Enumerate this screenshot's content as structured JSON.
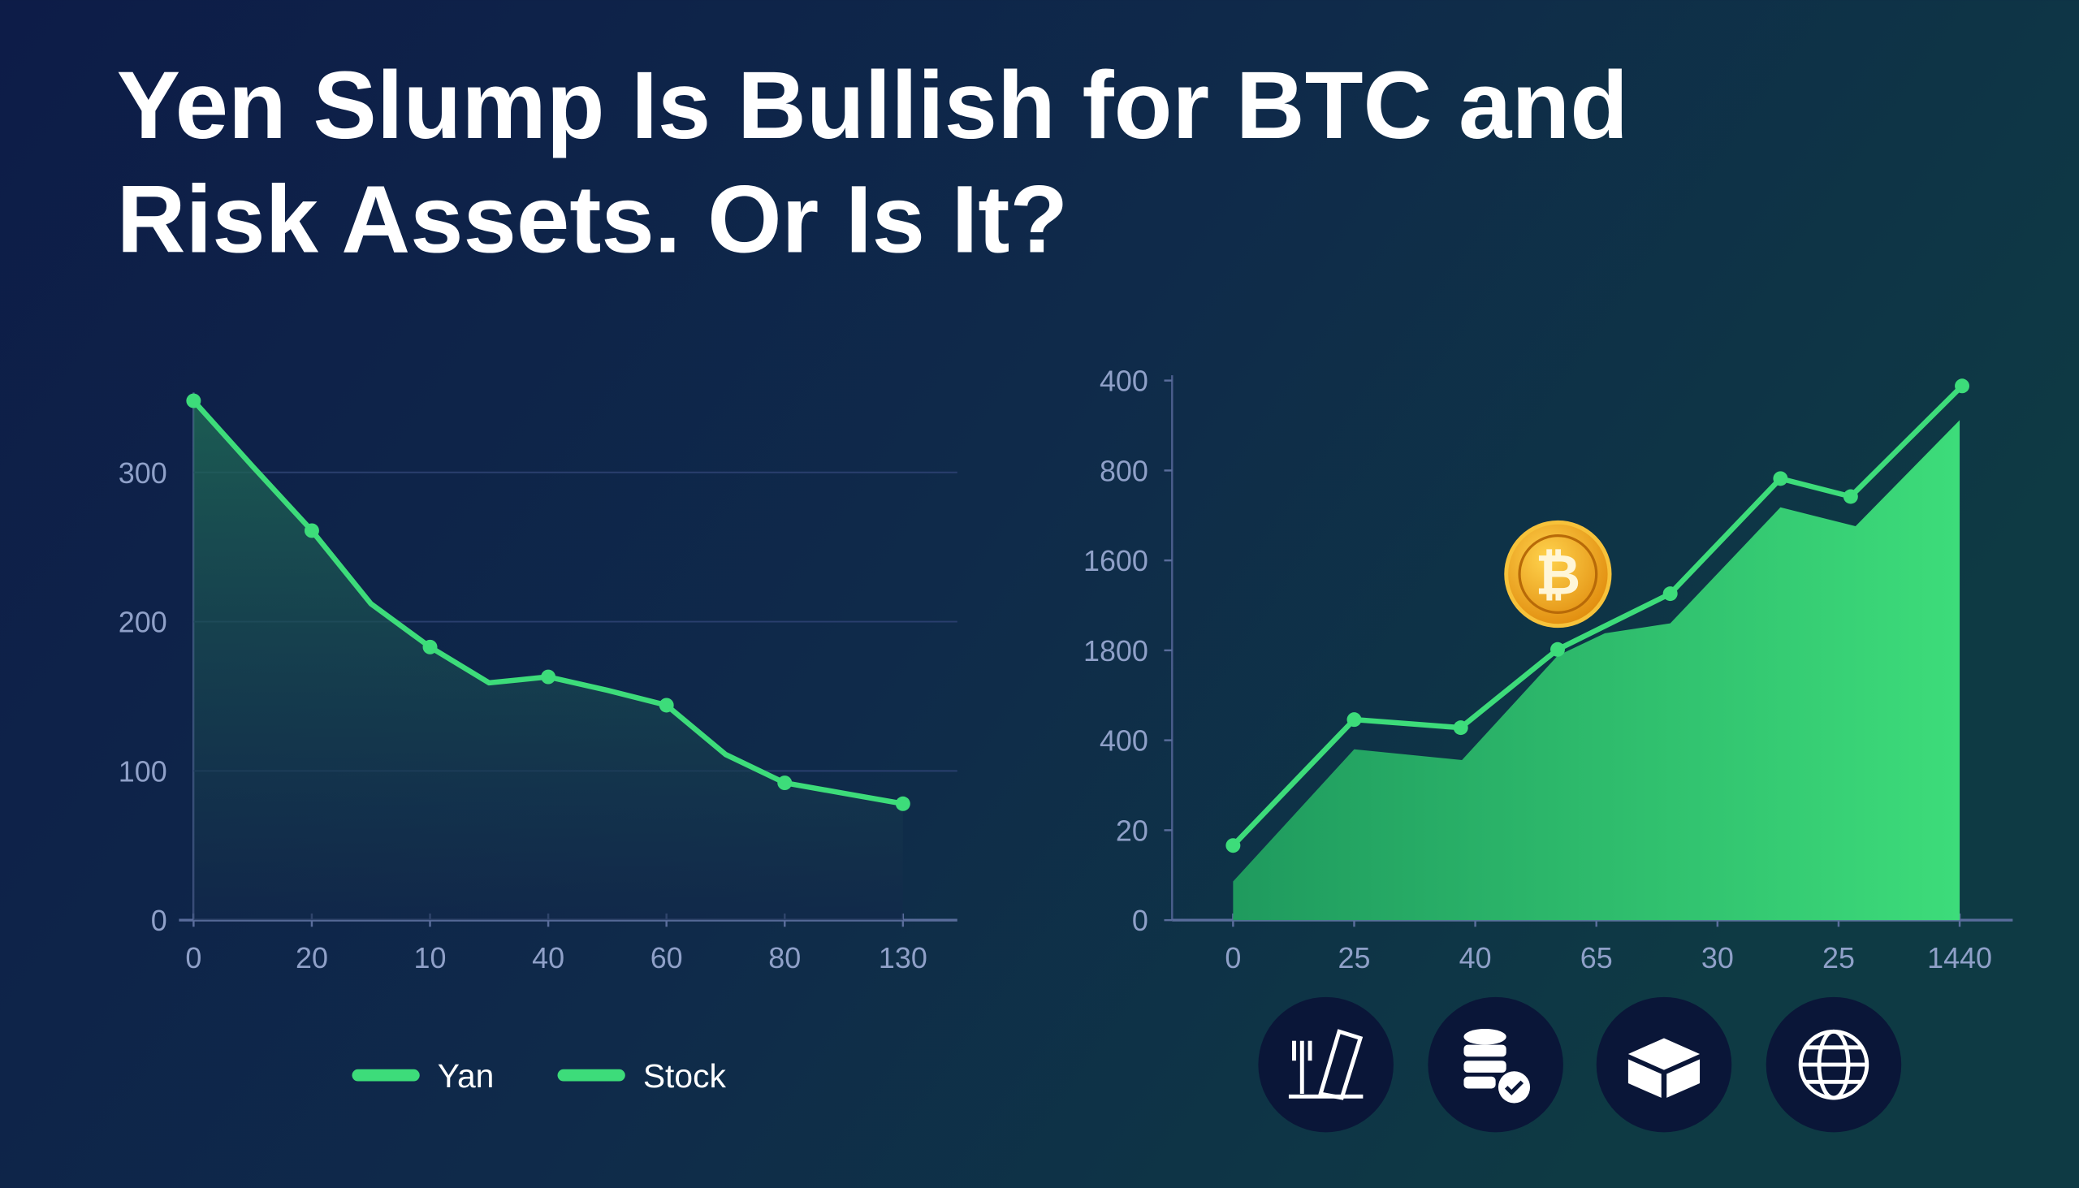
{
  "title_lines": [
    "Yen Slump Is Bullish for BTC and",
    "Risk Assets. Or Is It?"
  ],
  "coin_symbol": "₿",
  "chart_data": [
    {
      "type": "line",
      "categories": [
        "0",
        null,
        "20",
        null,
        "10",
        null,
        "40",
        null,
        "60",
        null,
        "80",
        null,
        "130"
      ],
      "ylim": [
        0,
        350
      ],
      "yticks": [
        0,
        100,
        200,
        300
      ],
      "grid": true,
      "series": [
        {
          "color": "#3ddc7a",
          "values": [
            348,
            304,
            261,
            212,
            183,
            159,
            163,
            154,
            144,
            111,
            92,
            85,
            78
          ]
        }
      ],
      "legend": [
        {
          "name": "Yan",
          "color": "#3ddc7a"
        },
        {
          "name": "Stock",
          "color": "#3ddc7a"
        }
      ]
    },
    {
      "type": "line",
      "categories": [
        "0",
        "25",
        "40",
        "65",
        "30",
        "25",
        "1440"
      ],
      "ycategories": [
        "0",
        "20",
        "400",
        "1800",
        "1600",
        "800",
        "400"
      ],
      "series": [
        {
          "color": "#3ddc7a",
          "x": [
            0,
            1,
            1.88,
            2.68,
            3.61,
            4.52,
            5.1,
            6.02
          ],
          "values": [
            0.83,
            2.23,
            2.14,
            3.01,
            3.63,
            4.91,
            4.71,
            5.94
          ]
        },
        {
          "color": "#2fc26a",
          "fill": true,
          "x": [
            0,
            1,
            1.89,
            2.68,
            3.07,
            3.61,
            4.52,
            5.14,
            6
          ],
          "values": [
            0.43,
            1.9,
            1.78,
            2.94,
            3.19,
            3.3,
            4.59,
            4.38,
            5.56
          ]
        }
      ]
    }
  ]
}
